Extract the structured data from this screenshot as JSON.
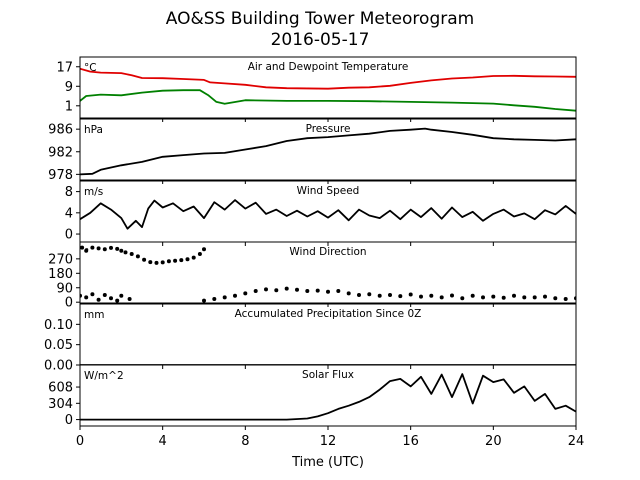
{
  "figure": {
    "title": "AO&SS Building Tower Meteorogram",
    "subtitle": "2016-05-17",
    "xlabel": "Time (UTC)"
  },
  "chart_data": [
    {
      "id": "temp",
      "type": "line",
      "title": "Air and Dewpoint Temperature",
      "unit": "°C",
      "ylim": [
        -4,
        21
      ],
      "yticks": [
        1,
        9,
        17
      ],
      "xlim": [
        0,
        24
      ],
      "xticks": [
        0,
        4,
        8,
        12,
        16,
        20,
        24
      ],
      "series": [
        {
          "color": "#e00000",
          "x": [
            0,
            0.5,
            1,
            2,
            2.5,
            3,
            4,
            5,
            6,
            6.3,
            7,
            8,
            9,
            10,
            12,
            13,
            14,
            15,
            16,
            17,
            18,
            19,
            20,
            21,
            22,
            23,
            24
          ],
          "y": [
            16.2,
            15,
            14.6,
            14.4,
            13.5,
            12.4,
            12.3,
            12,
            11.6,
            10.6,
            10.2,
            9.6,
            8.6,
            8.2,
            8.0,
            8.4,
            8.6,
            9.2,
            10.4,
            11.4,
            12.2,
            12.6,
            13.2,
            13.3,
            13.1,
            13.0,
            12.9
          ]
        },
        {
          "color": "#008000",
          "x": [
            0,
            0.3,
            1,
            2,
            3,
            4,
            5,
            5.8,
            6.2,
            6.6,
            7,
            8,
            10,
            12,
            14,
            16,
            18,
            20,
            21,
            22,
            23,
            24
          ],
          "y": [
            3.0,
            5.0,
            5.6,
            5.3,
            6.4,
            7.2,
            7.4,
            7.4,
            5.4,
            2.6,
            1.8,
            3.3,
            3.0,
            3.0,
            2.9,
            2.6,
            2.3,
            1.9,
            1.2,
            0.6,
            -0.3,
            -1.0
          ]
        }
      ]
    },
    {
      "id": "pressure",
      "type": "line",
      "title": "Pressure",
      "unit": "hPa",
      "ylim": [
        977,
        987.8
      ],
      "yticks": [
        978,
        982,
        986
      ],
      "xlim": [
        0,
        24
      ],
      "xticks": [
        0,
        4,
        8,
        12,
        16,
        20,
        24
      ],
      "series": [
        {
          "color": "#000000",
          "x": [
            0,
            0.6,
            1,
            2,
            3,
            4,
            5,
            6,
            7,
            8,
            9,
            10,
            11,
            12,
            13,
            14,
            15,
            16,
            16.7,
            17,
            18,
            19,
            20,
            21,
            22,
            23,
            24
          ],
          "y": [
            978.0,
            978.1,
            978.8,
            979.6,
            980.2,
            981.1,
            981.4,
            981.7,
            981.8,
            982.4,
            983.0,
            983.9,
            984.4,
            984.6,
            984.9,
            985.2,
            985.7,
            985.9,
            986.1,
            985.9,
            985.5,
            985.0,
            984.4,
            984.2,
            984.1,
            984.0,
            984.2
          ]
        }
      ]
    },
    {
      "id": "wind_speed",
      "type": "line",
      "title": "Wind Speed",
      "unit": "m/s",
      "ylim": [
        -1.5,
        10
      ],
      "yticks": [
        0,
        4,
        8
      ],
      "xlim": [
        0,
        24
      ],
      "xticks": [
        0,
        4,
        8,
        12,
        16,
        20,
        24
      ],
      "series": [
        {
          "color": "#000000",
          "x": [
            0,
            0.5,
            1,
            1.5,
            2,
            2.3,
            2.7,
            3,
            3.3,
            3.6,
            4,
            4.5,
            5,
            5.5,
            6,
            6.5,
            7,
            7.5,
            8,
            8.5,
            9,
            9.5,
            10,
            10.5,
            11,
            11.5,
            12,
            12.5,
            13,
            13.5,
            14,
            14.5,
            15,
            15.5,
            16,
            16.5,
            17,
            17.5,
            18,
            18.5,
            19,
            19.5,
            20,
            20.5,
            21,
            21.5,
            22,
            22.5,
            23,
            23.5,
            24
          ],
          "y": [
            2.8,
            4.0,
            5.8,
            4.6,
            3.0,
            1.0,
            2.5,
            1.3,
            4.8,
            6.3,
            5.0,
            5.8,
            4.3,
            5.2,
            3.0,
            6.0,
            4.6,
            6.4,
            4.8,
            5.9,
            3.8,
            4.6,
            3.4,
            4.4,
            3.3,
            4.3,
            3.1,
            4.5,
            2.6,
            4.6,
            3.5,
            3.0,
            4.4,
            2.8,
            4.6,
            3.2,
            4.9,
            2.9,
            5.0,
            3.2,
            4.2,
            2.5,
            3.8,
            4.6,
            3.3,
            3.9,
            2.8,
            4.5,
            3.7,
            5.3,
            3.8
          ]
        }
      ]
    },
    {
      "id": "wind_dir",
      "type": "scatter",
      "title": "Wind Direction",
      "unit": "°",
      "ylim": [
        -5,
        375
      ],
      "yticks": [
        0,
        90,
        180,
        270
      ],
      "xlim": [
        0,
        24
      ],
      "xticks": [
        0,
        4,
        8,
        12,
        16,
        20,
        24
      ],
      "series": [
        {
          "color": "#000000",
          "x": [
            0.1,
            0.3,
            0.6,
            0.9,
            1.2,
            1.5,
            1.8,
            2.0,
            2.2,
            2.5,
            2.8,
            3.1,
            3.4,
            3.7,
            4.0,
            4.3,
            4.6,
            4.9,
            5.2,
            5.5,
            5.8,
            6.0
          ],
          "y": [
            340,
            320,
            340,
            335,
            330,
            338,
            332,
            320,
            310,
            300,
            285,
            265,
            250,
            245,
            248,
            255,
            258,
            262,
            268,
            278,
            300,
            330
          ]
        },
        {
          "color": "#000000",
          "x": [
            0,
            0.3,
            0.6,
            0.9,
            1.2,
            1.5,
            1.8,
            2.0,
            2.4
          ],
          "y": [
            40,
            30,
            50,
            15,
            45,
            25,
            10,
            40,
            20
          ]
        },
        {
          "color": "#000000",
          "x": [
            6.0,
            6.5,
            7,
            7.5,
            8,
            8.5,
            9,
            9.5,
            10,
            10.5,
            11,
            11.5,
            12,
            12.5,
            13,
            13.5,
            14,
            14.5,
            15,
            15.5,
            16,
            16.5,
            17,
            17.5,
            18,
            18.5,
            19,
            19.5,
            20,
            20.5,
            21,
            21.5,
            22,
            22.5,
            23,
            23.5,
            24
          ],
          "y": [
            10,
            20,
            30,
            40,
            55,
            70,
            80,
            75,
            85,
            78,
            70,
            72,
            65,
            70,
            55,
            45,
            50,
            40,
            45,
            38,
            48,
            35,
            40,
            30,
            42,
            25,
            40,
            30,
            35,
            28,
            40,
            30,
            30,
            35,
            25,
            20,
            25
          ]
        }
      ]
    },
    {
      "id": "precip",
      "type": "line",
      "title": "Accumulated Precipitation Since 0Z",
      "unit": "mm",
      "ylim": [
        0,
        0.15
      ],
      "yticks": [
        0.0,
        0.05,
        0.1
      ],
      "ytick_labels": [
        "0.00",
        "0.05",
        "0.10"
      ],
      "xlim": [
        0,
        24
      ],
      "xticks": [
        0,
        4,
        8,
        12,
        16,
        20,
        24
      ],
      "series": [
        {
          "color": "#000000",
          "x": [
            0,
            24
          ],
          "y": [
            0,
            0
          ]
        }
      ]
    },
    {
      "id": "solar",
      "type": "line",
      "title": "Solar Flux",
      "unit": "W/m^2",
      "ylim": [
        -120,
        1020
      ],
      "yticks": [
        0,
        304,
        608
      ],
      "xlim": [
        0,
        24
      ],
      "xticks": [
        0,
        4,
        8,
        12,
        16,
        20,
        24
      ],
      "xtick_labels": [
        "0",
        "4",
        "8",
        "12",
        "16",
        "20",
        "24"
      ],
      "series": [
        {
          "color": "#000000",
          "x": [
            0,
            1,
            2,
            3,
            4,
            5,
            6,
            7,
            8,
            9,
            10,
            11,
            11.5,
            12,
            12.5,
            13,
            13.5,
            14,
            14.5,
            15,
            15.5,
            16,
            16.5,
            17,
            17.5,
            18,
            18.5,
            19,
            19.5,
            20,
            20.5,
            21,
            21.5,
            22,
            22.5,
            23,
            23.5,
            24
          ],
          "y": [
            0,
            0,
            0,
            0,
            0,
            0,
            0,
            0,
            0,
            0,
            0,
            20,
            60,
            120,
            200,
            260,
            330,
            420,
            560,
            720,
            760,
            620,
            800,
            480,
            840,
            420,
            850,
            300,
            820,
            700,
            750,
            500,
            620,
            350,
            480,
            200,
            260,
            150
          ]
        }
      ]
    }
  ]
}
